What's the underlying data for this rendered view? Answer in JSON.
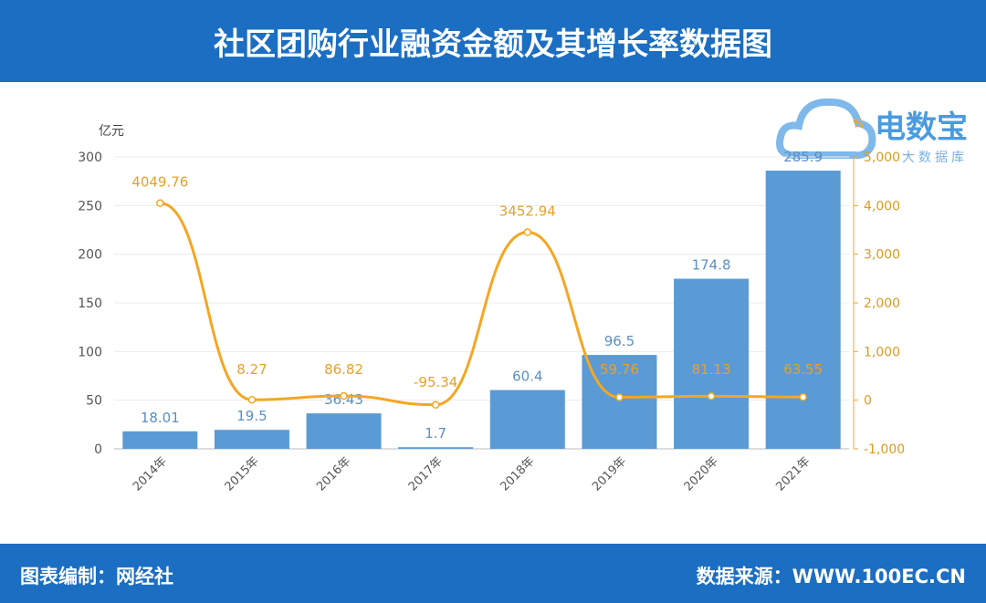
{
  "header": {
    "title": "社区团购行业融资金额及其增长率数据图"
  },
  "footer": {
    "left": "图表编制：网经社",
    "right": "数据来源：WWW.100EC.CN"
  },
  "logo": {
    "name": "电数宝",
    "tagline": "大数据库",
    "mark": "eDT"
  },
  "chart_data": {
    "type": "bar+line",
    "title": "社区团购行业融资金额及其增长率数据图",
    "categories": [
      "2014年",
      "2015年",
      "2016年",
      "2017年",
      "2018年",
      "2019年",
      "2020年",
      "2021年"
    ],
    "y_left": {
      "unit": "亿元",
      "ylim": [
        0,
        300
      ],
      "ticks": [
        0,
        50,
        100,
        150,
        200,
        250,
        300
      ]
    },
    "y_right": {
      "unit": "%",
      "ylim": [
        -1000,
        5000
      ],
      "ticks": [
        "-1,000",
        "0",
        "1,000",
        "2,000",
        "3,000",
        "4,000",
        "5,000"
      ],
      "tick_values": [
        -1000,
        0,
        1000,
        2000,
        3000,
        4000,
        5000
      ]
    },
    "series": [
      {
        "type": "bar",
        "axis": "left",
        "color": "#5b9bd5",
        "values": [
          18.01,
          19.5,
          36.43,
          1.7,
          60.4,
          96.5,
          174.8,
          285.9
        ],
        "labels": [
          "18.01",
          "19.5",
          "36.43",
          "1.7",
          "60.4",
          "96.5",
          "174.8",
          "285.9"
        ]
      },
      {
        "type": "line",
        "axis": "right",
        "color": "#f5a623",
        "values": [
          4049.76,
          8.27,
          86.82,
          -95.34,
          3452.94,
          59.76,
          81.13,
          63.55
        ],
        "labels": [
          "4049.76",
          "8.27",
          "86.82",
          "-95.34",
          "3452.94",
          "59.76",
          "81.13",
          "63.55"
        ]
      }
    ],
    "grid": true
  }
}
